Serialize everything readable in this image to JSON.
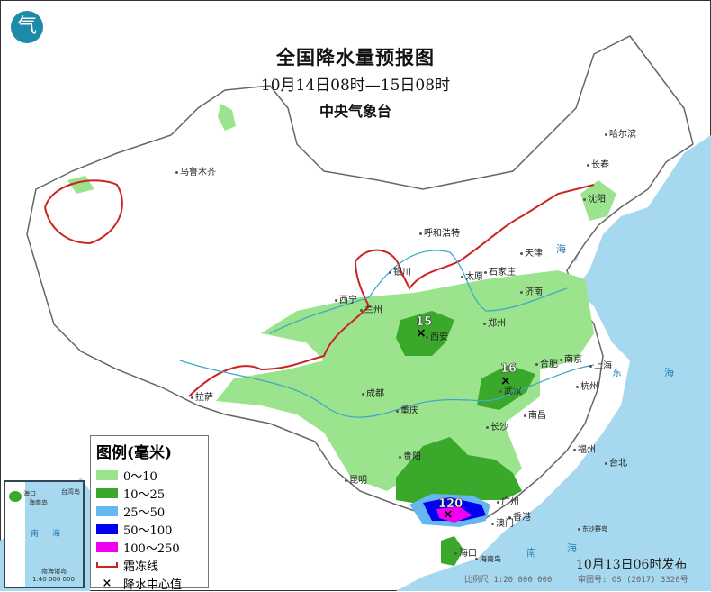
{
  "header": {
    "title": "全国降水量预报图",
    "period": "10月14日08时—15日08时",
    "issuer": "中央气象台",
    "logo_text": "气"
  },
  "legend": {
    "title": "图例(毫米)",
    "items": [
      {
        "label": "0～10",
        "color": "#9be38c"
      },
      {
        "label": "10～25",
        "color": "#3aa82a"
      },
      {
        "label": "25～50",
        "color": "#66b6f0"
      },
      {
        "label": "50～100",
        "color": "#0000f0"
      },
      {
        "label": "100～250",
        "color": "#f000f0"
      },
      {
        "label": "霜冻线",
        "color": "#cc2222"
      },
      {
        "label": "降水中心值",
        "symbol": "×"
      }
    ]
  },
  "cities": [
    "乌鲁木齐",
    "哈尔滨",
    "长春",
    "沈阳",
    "呼和浩特",
    "天津",
    "石家庄",
    "太原",
    "银川",
    "济南",
    "西宁",
    "兰州",
    "郑州",
    "西安",
    "合肥",
    "南京",
    "上海",
    "武汉",
    "杭州",
    "成都",
    "重庆",
    "长沙",
    "南昌",
    "福州",
    "台北",
    "贵阳",
    "昆明",
    "广州",
    "香港",
    "澳门",
    "海口",
    "海南岛",
    "拉萨",
    "东沙群岛"
  ],
  "seas": [
    "东",
    "海",
    "南",
    "海",
    "海"
  ],
  "precip_centers": [
    {
      "value": "15",
      "location": "西安"
    },
    {
      "value": "16",
      "location": "武汉"
    },
    {
      "value": "120",
      "location": "广西南部"
    }
  ],
  "inset": {
    "labels": [
      "南",
      "海",
      "海口",
      "海南岛",
      "台湾岛",
      "南海诸岛",
      "1:40 000 000"
    ]
  },
  "footer": {
    "issued": "10月13日06时发布",
    "scale": "比例尺 1:20 000 000",
    "review_no": "审图号: GS (2017) 3320号"
  },
  "colors": {
    "sea": "#a6d8ef",
    "land": "#ffffff",
    "border": "#888888",
    "river": "#3fa9c9",
    "frost": "#cc2222"
  }
}
